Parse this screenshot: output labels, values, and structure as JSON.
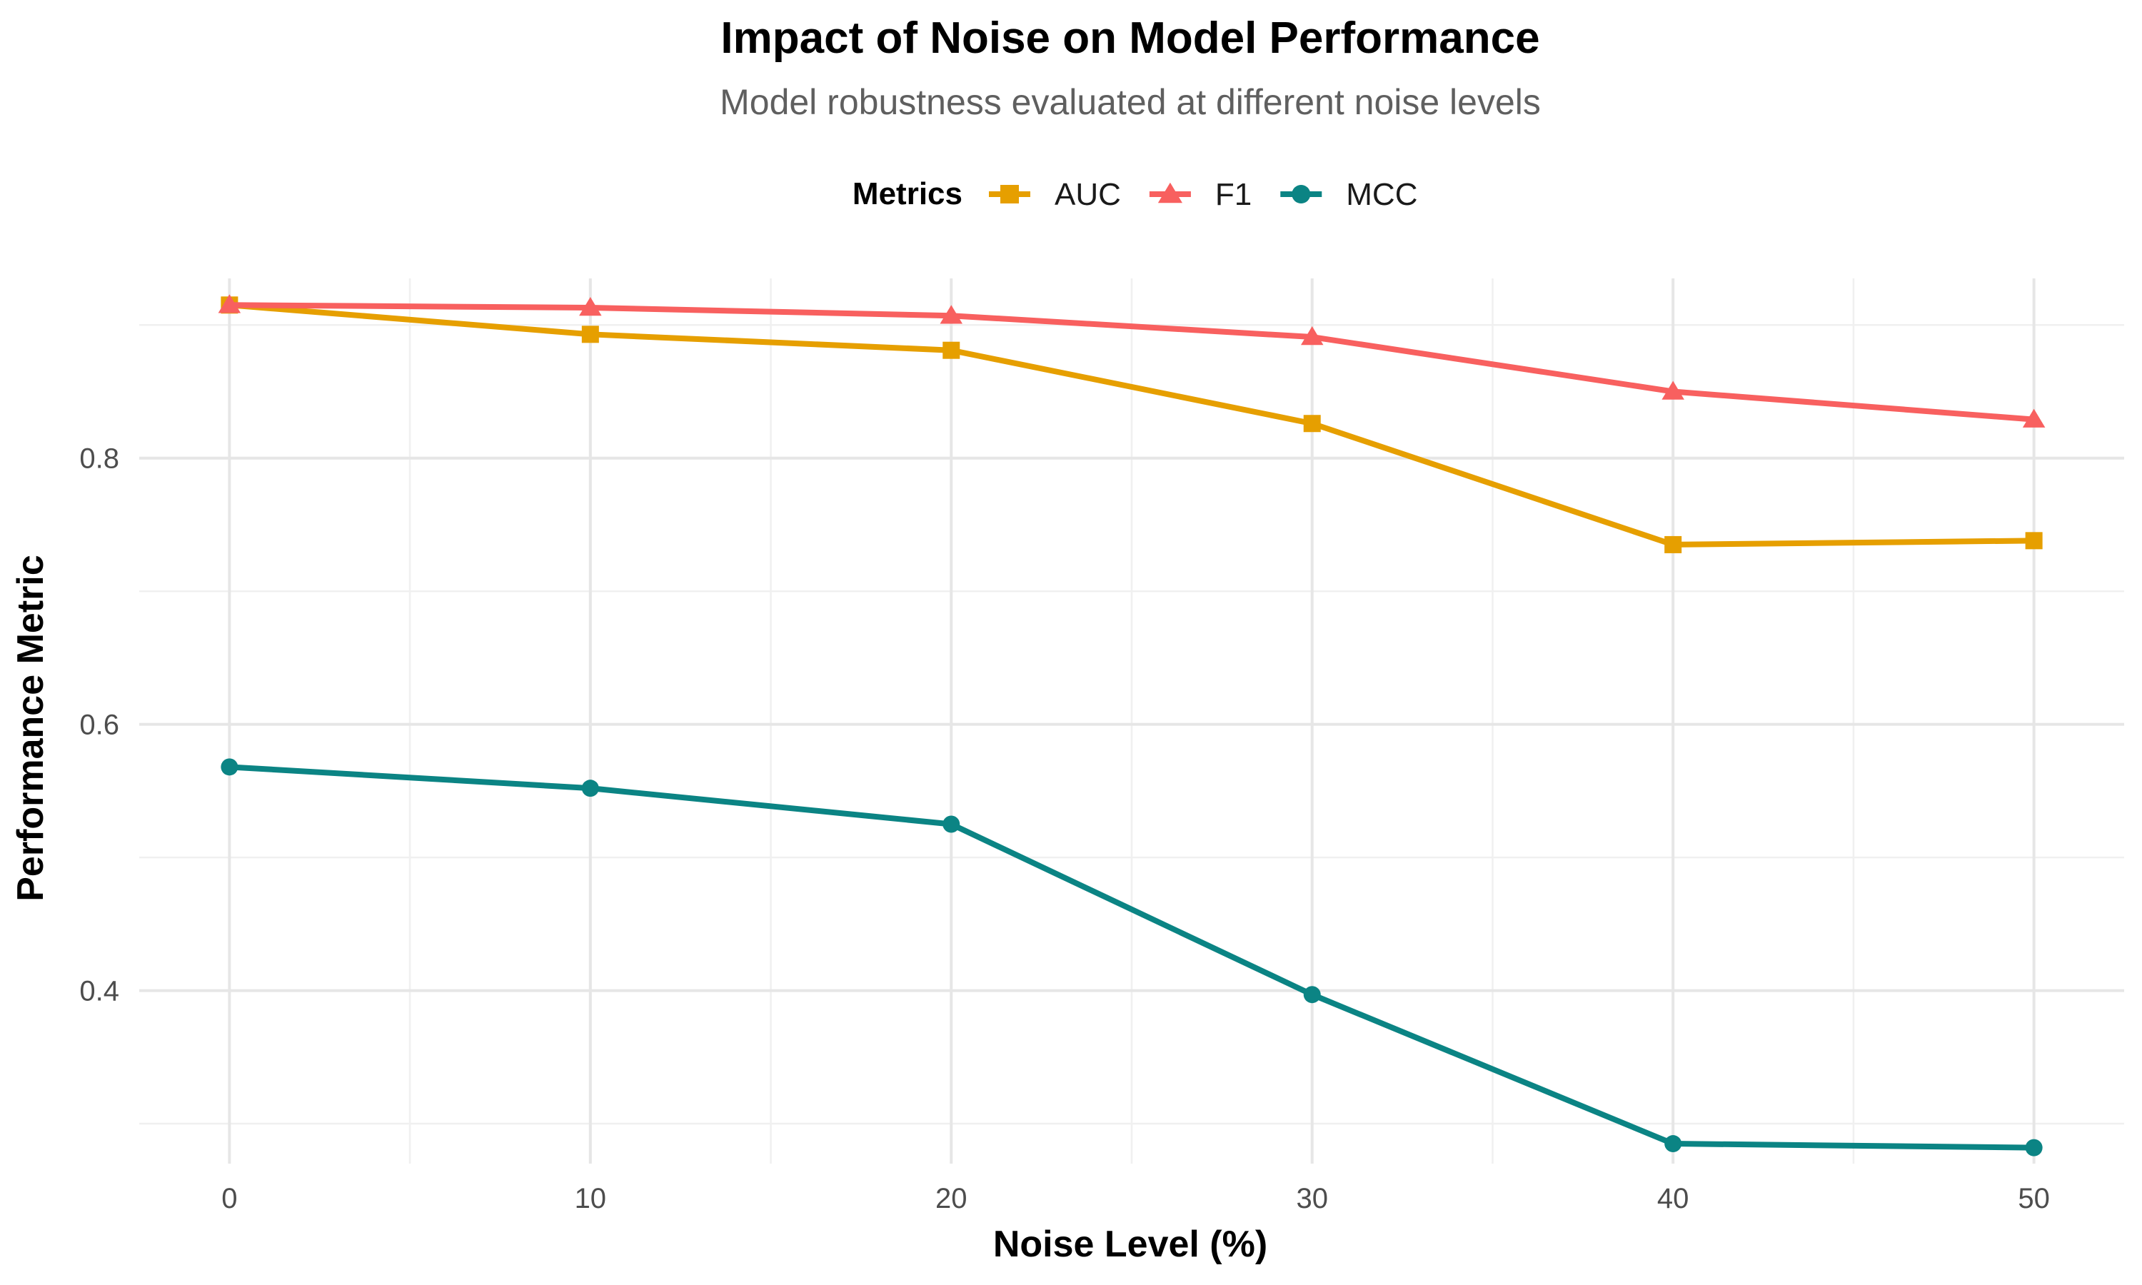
{
  "chart_data": {
    "type": "line",
    "title": "Impact of Noise on Model Performance",
    "subtitle": "Model robustness evaluated at different noise levels",
    "xlabel": "Noise Level (%)",
    "ylabel": "Performance Metric",
    "x": [
      0,
      10,
      20,
      30,
      40,
      50
    ],
    "x_ticks": [
      0,
      10,
      20,
      30,
      40,
      50
    ],
    "y_ticks": [
      0.4,
      0.6,
      0.8
    ],
    "xlim": [
      -2.5,
      52.5
    ],
    "ylim": [
      0.27,
      0.935
    ],
    "grid": true,
    "legend": {
      "title": "Metrics",
      "position": "top"
    },
    "series": [
      {
        "name": "AUC",
        "values": [
          0.915,
          0.893,
          0.881,
          0.826,
          0.735,
          0.738
        ],
        "color": "#E69F00",
        "marker": "square"
      },
      {
        "name": "F1",
        "values": [
          0.915,
          0.913,
          0.907,
          0.891,
          0.85,
          0.829
        ],
        "color": "#F8605F",
        "marker": "triangle"
      },
      {
        "name": "MCC",
        "values": [
          0.568,
          0.552,
          0.525,
          0.397,
          0.285,
          0.282
        ],
        "color": "#0B8484",
        "marker": "circle"
      }
    ]
  }
}
